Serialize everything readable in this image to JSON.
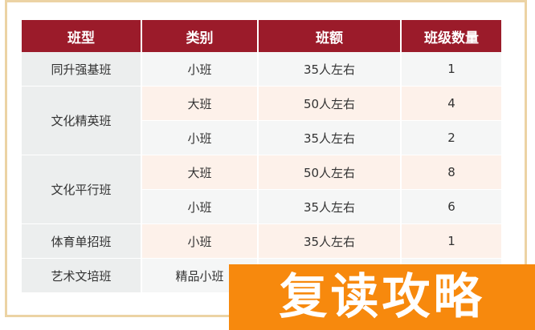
{
  "table": {
    "headers": [
      "班型",
      "类别",
      "班额",
      "班级数量"
    ],
    "rows": [
      {
        "type": "同升强基班",
        "category": "小班",
        "size": "35人左右",
        "count": "1"
      },
      {
        "type": "文化精英班",
        "category": "大班",
        "size": "50人左右",
        "count": "4"
      },
      {
        "type": "",
        "category": "小班",
        "size": "35人左右",
        "count": "2"
      },
      {
        "type": "文化平行班",
        "category": "大班",
        "size": "50人左右",
        "count": "8"
      },
      {
        "type": "",
        "category": "小班",
        "size": "35人左右",
        "count": "6"
      },
      {
        "type": "体育单招班",
        "category": "小班",
        "size": "35人左右",
        "count": "1"
      },
      {
        "type": "艺术文培班",
        "category": "精品小班",
        "size": "",
        "count": ""
      }
    ]
  },
  "overlay": {
    "text": "复读攻略",
    "color": "#f7890d"
  },
  "colors": {
    "header": "#9b1b2a",
    "border": "#ecd3a4"
  }
}
